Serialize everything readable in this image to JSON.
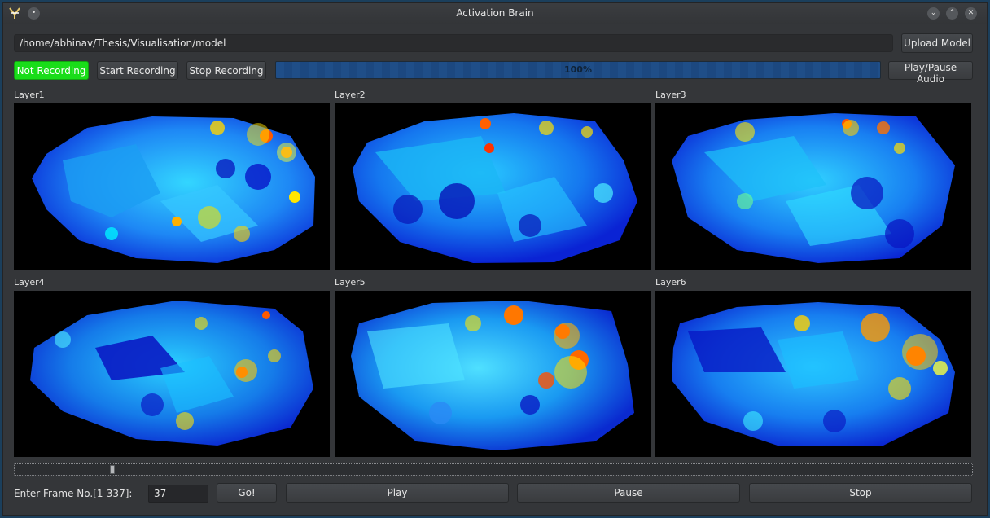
{
  "window": {
    "title": "Activation Brain"
  },
  "model": {
    "path": "/home/abhinav/Thesis/Visualisation/model",
    "upload_label": "Upload Model"
  },
  "recording": {
    "status_label": "Not Recording",
    "status_color": "#19dd19",
    "start_label": "Start Recording",
    "stop_label": "Stop Recording"
  },
  "audio": {
    "progress_value": 1.0,
    "progress_text": "100%",
    "play_pause_label": "Play/Pause Audio"
  },
  "layers": [
    {
      "label": "Layer1"
    },
    {
      "label": "Layer2"
    },
    {
      "label": "Layer3"
    },
    {
      "label": "Layer4"
    },
    {
      "label": "Layer5"
    },
    {
      "label": "Layer6"
    }
  ],
  "timeline": {
    "slider_value": 0.1
  },
  "frame_controls": {
    "label": "Enter Frame No.[1-337]:",
    "frame_value": "37",
    "go_label": "Go!",
    "play_label": "Play",
    "pause_label": "Pause",
    "stop_label": "Stop"
  },
  "colors": {
    "accent": "#1f4e88",
    "background": "#343639"
  }
}
